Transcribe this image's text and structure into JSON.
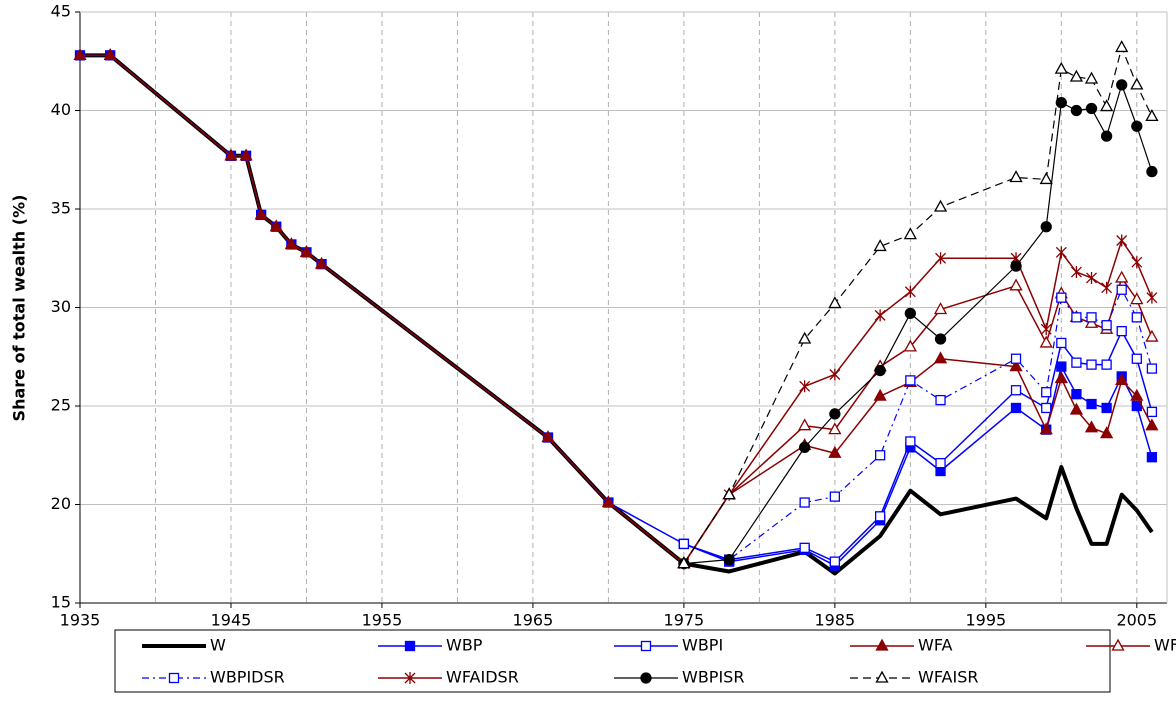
{
  "chart_data": {
    "type": "line",
    "y_label": "Share of total wealth (%)",
    "x": [
      1935,
      1937,
      1945,
      1946,
      1947,
      1948,
      1949,
      1950,
      1951,
      1966,
      1970,
      1975,
      1978,
      1983,
      1985,
      1988,
      1990,
      1992,
      1997,
      1999,
      2000,
      2001,
      2002,
      2003,
      2004,
      2005,
      2006
    ],
    "xlim": [
      1935,
      2007
    ],
    "xticks": [
      1935,
      1945,
      1955,
      1965,
      1975,
      1985,
      1995,
      2005
    ],
    "ylim": [
      15,
      45
    ],
    "yticks": [
      15,
      20,
      25,
      30,
      35,
      40,
      45
    ],
    "grid": true,
    "legend": "bottom",
    "series": [
      {
        "name": "W",
        "color": "#000000",
        "marker": "none",
        "dash": "solid",
        "line_width": 4,
        "values": [
          42.8,
          42.8,
          37.7,
          37.7,
          34.7,
          34.1,
          33.2,
          32.8,
          32.2,
          23.4,
          20.1,
          17.0,
          16.6,
          17.6,
          16.5,
          18.4,
          20.7,
          19.5,
          20.3,
          19.3,
          21.9,
          19.8,
          18.0,
          18.0,
          20.5,
          19.7,
          18.6
        ]
      },
      {
        "name": "WBP",
        "color": "#0000ff",
        "marker": "square",
        "dash": "solid",
        "line_width": 1.5,
        "values": [
          42.8,
          42.8,
          37.7,
          37.7,
          34.7,
          34.1,
          33.2,
          32.8,
          32.2,
          23.4,
          20.1,
          18.0,
          17.1,
          17.7,
          16.9,
          19.2,
          22.9,
          21.7,
          24.9,
          23.8,
          27.0,
          25.6,
          25.1,
          24.9,
          26.5,
          25.0,
          22.4
        ]
      },
      {
        "name": "WBPI",
        "color": "#0000ff",
        "marker": "square-open",
        "dash": "solid",
        "line_width": 1.5,
        "values": [
          null,
          null,
          null,
          null,
          null,
          null,
          null,
          null,
          null,
          null,
          null,
          18.0,
          17.2,
          17.8,
          17.1,
          19.4,
          23.2,
          22.1,
          25.8,
          24.9,
          28.2,
          27.2,
          27.1,
          27.1,
          28.8,
          27.4,
          24.7
        ]
      },
      {
        "name": "WFA",
        "color": "#8b0000",
        "marker": "triangle",
        "dash": "solid",
        "line_width": 1.5,
        "values": [
          42.8,
          42.8,
          37.7,
          37.7,
          34.7,
          34.1,
          33.2,
          32.8,
          32.2,
          23.4,
          20.1,
          17.0,
          20.5,
          23.0,
          22.6,
          25.5,
          26.2,
          27.4,
          27.0,
          23.8,
          26.4,
          24.8,
          23.9,
          23.6,
          26.3,
          25.5,
          24.0
        ]
      },
      {
        "name": "WFAI",
        "color": "#8b0000",
        "marker": "triangle-open",
        "dash": "solid",
        "line_width": 1.5,
        "values": [
          null,
          null,
          null,
          null,
          null,
          null,
          null,
          null,
          null,
          null,
          null,
          17.0,
          20.5,
          24.0,
          23.8,
          27.0,
          28.0,
          29.9,
          31.1,
          28.2,
          30.7,
          29.5,
          29.2,
          28.9,
          31.5,
          30.4,
          28.5
        ]
      },
      {
        "name": "WBPIDSR",
        "color": "#0000ff",
        "marker": "square-open",
        "dash": "dashdot",
        "line_width": 1.2,
        "values": [
          null,
          null,
          null,
          null,
          null,
          null,
          null,
          null,
          null,
          null,
          null,
          18.0,
          17.2,
          20.1,
          20.4,
          22.5,
          26.3,
          25.3,
          27.4,
          25.7,
          30.5,
          29.5,
          29.5,
          29.1,
          30.9,
          29.5,
          26.9
        ]
      },
      {
        "name": "WFAIDSR",
        "color": "#8b0000",
        "marker": "star",
        "dash": "solid",
        "line_width": 1.5,
        "values": [
          null,
          null,
          null,
          null,
          null,
          null,
          null,
          null,
          null,
          null,
          null,
          17.0,
          20.5,
          26.0,
          26.6,
          29.6,
          30.8,
          32.5,
          32.5,
          28.9,
          32.8,
          31.8,
          31.5,
          31.0,
          33.4,
          32.3,
          30.5
        ]
      },
      {
        "name": "WBPISR",
        "color": "#000000",
        "marker": "circle",
        "dash": "solid",
        "line_width": 1.2,
        "values": [
          null,
          null,
          null,
          null,
          null,
          null,
          null,
          null,
          null,
          null,
          null,
          17.0,
          17.2,
          22.9,
          24.6,
          26.8,
          29.7,
          28.4,
          32.1,
          34.1,
          40.4,
          40.0,
          40.1,
          38.7,
          41.3,
          39.2,
          36.9
        ]
      },
      {
        "name": "WFAISR",
        "color": "#000000",
        "marker": "triangle-open",
        "dash": "dashed",
        "line_width": 1.2,
        "values": [
          null,
          null,
          null,
          null,
          null,
          null,
          null,
          null,
          null,
          null,
          null,
          17.0,
          20.5,
          28.4,
          30.2,
          33.1,
          33.7,
          35.1,
          36.6,
          36.5,
          42.1,
          41.7,
          41.6,
          40.2,
          43.2,
          41.3,
          39.7
        ]
      }
    ]
  }
}
